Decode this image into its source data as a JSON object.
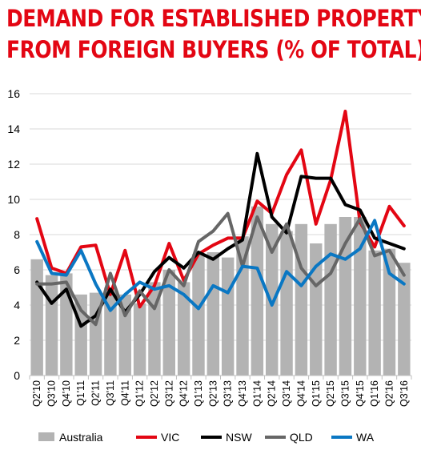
{
  "title_lines": [
    "DEMAND FOR ESTABLISHED PROPERTY",
    "FROM FOREIGN BUYERS (% OF TOTAL)"
  ],
  "chart_data": {
    "type": "bar+line",
    "title": "DEMAND FOR ESTABLISHED PROPERTY FROM FOREIGN BUYERS (% OF TOTAL)",
    "xlabel": "",
    "ylabel": "",
    "ylim": [
      0,
      16
    ],
    "yticks": [
      0,
      2,
      4,
      6,
      8,
      10,
      12,
      14,
      16
    ],
    "grid": true,
    "legend_position": "bottom",
    "x": [
      "Q2'10",
      "Q3'10",
      "Q4'10",
      "Q1'11",
      "Q2'11",
      "Q3'11",
      "Q4'11",
      "Q1'12",
      "Q2'12",
      "Q3'12",
      "Q4'12",
      "Q1'13",
      "Q2'13",
      "Q3'13",
      "Q4'13",
      "Q1'14",
      "Q2'14",
      "Q3'14",
      "Q4'14",
      "Q1'15",
      "Q2'15",
      "Q3'15",
      "Q4'15",
      "Q1'16",
      "Q2'16",
      "Q3'16"
    ],
    "xtick_labels": [
      "Q2'10",
      "Q3'10",
      "Q4'10",
      "Q1'11",
      "Q2'11",
      "Q3'11",
      "Q4'11",
      "Q1'12",
      "Q2'12",
      "Q3'12",
      "Q4'12",
      "Q1'13",
      "Q2'13",
      "Q3'13",
      "Q4'13",
      "Q1'14",
      "Q2'14",
      "Q3'14",
      "Q4'14",
      "Q1'15",
      "Q2'15",
      "Q3'15",
      "Q4'15",
      "Q1'16",
      "Q2'16",
      "Q3'16"
    ],
    "series": [
      {
        "name": "Australia",
        "type": "bar",
        "color": "#b3b3b3",
        "values": [
          6.6,
          5.7,
          5.8,
          4.6,
          4.7,
          5.0,
          4.6,
          4.1,
          5.3,
          6.0,
          5.3,
          6.9,
          7.0,
          6.7,
          7.9,
          9.6,
          8.6,
          8.2,
          8.6,
          7.5,
          8.6,
          9.0,
          9.0,
          7.1,
          7.2,
          6.4
        ]
      },
      {
        "name": "VIC",
        "type": "line",
        "color": "#e30613",
        "values": [
          8.9,
          6.1,
          5.8,
          7.3,
          7.4,
          4.6,
          7.1,
          3.9,
          5.1,
          7.5,
          5.4,
          6.9,
          7.4,
          7.8,
          7.8,
          9.9,
          9.2,
          11.4,
          12.8,
          8.6,
          11.1,
          15.0,
          8.7,
          7.3,
          9.6,
          8.5
        ]
      },
      {
        "name": "NSW",
        "type": "line",
        "color": "#000000",
        "values": [
          5.3,
          4.1,
          4.9,
          2.8,
          3.4,
          4.9,
          3.6,
          4.6,
          5.9,
          6.7,
          6.1,
          7.0,
          6.6,
          7.2,
          7.7,
          12.6,
          9.0,
          8.1,
          11.3,
          11.2,
          11.2,
          9.7,
          9.4,
          7.8,
          7.5,
          7.2
        ]
      },
      {
        "name": "QLD",
        "type": "line",
        "color": "#666666",
        "values": [
          5.2,
          5.2,
          5.3,
          3.7,
          2.9,
          5.8,
          3.4,
          4.8,
          3.8,
          6.0,
          5.1,
          7.6,
          8.2,
          9.2,
          6.2,
          9.0,
          7.0,
          8.6,
          6.1,
          5.1,
          5.8,
          7.5,
          8.9,
          6.8,
          7.1,
          5.7
        ]
      },
      {
        "name": "WA",
        "type": "line",
        "color": "#0a77c3",
        "values": [
          7.6,
          5.8,
          5.7,
          7.1,
          5.2,
          3.7,
          4.6,
          5.3,
          4.9,
          5.1,
          4.6,
          3.8,
          5.1,
          4.7,
          6.2,
          6.1,
          4.0,
          5.9,
          5.1,
          6.2,
          6.9,
          6.6,
          7.2,
          8.8,
          5.8,
          5.2
        ]
      }
    ]
  }
}
